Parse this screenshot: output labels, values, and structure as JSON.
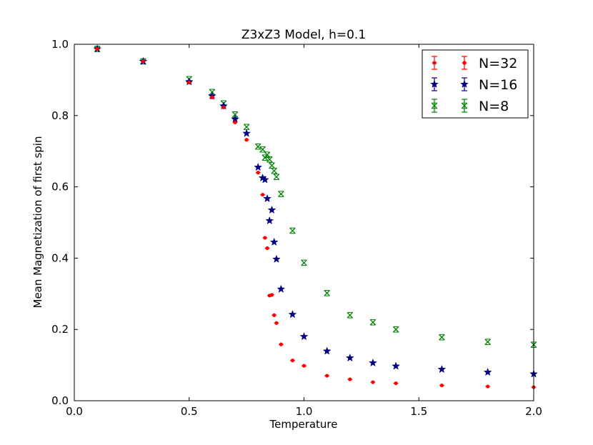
{
  "chart_data": {
    "type": "scatter",
    "title": "Z3xZ3 Model, h=0.1",
    "xlabel": "Temperature",
    "ylabel": "Mean Magnetization of first spin",
    "xlim": [
      0.0,
      2.0
    ],
    "ylim": [
      0.0,
      1.0
    ],
    "xticks": [
      "0.0",
      "0.5",
      "1.0",
      "1.5",
      "2.0"
    ],
    "yticks": [
      "0.0",
      "0.2",
      "0.4",
      "0.6",
      "0.8",
      "1.0"
    ],
    "grid": false,
    "legend_position": "top-right",
    "error_bars": true,
    "series": [
      {
        "name": "N=32",
        "color": "#ff0000",
        "marker": "dot",
        "x": [
          0.1,
          0.3,
          0.5,
          0.6,
          0.65,
          0.7,
          0.75,
          0.8,
          0.82,
          0.83,
          0.84,
          0.85,
          0.86,
          0.87,
          0.88,
          0.9,
          0.95,
          1.0,
          1.1,
          1.2,
          1.3,
          1.4,
          1.6,
          1.8,
          2.0
        ],
        "y": [
          0.987,
          0.952,
          0.893,
          0.851,
          0.823,
          0.781,
          0.732,
          0.64,
          0.578,
          0.457,
          0.428,
          0.295,
          0.297,
          0.24,
          0.218,
          0.158,
          0.113,
          0.098,
          0.07,
          0.06,
          0.052,
          0.049,
          0.043,
          0.04,
          0.038
        ]
      },
      {
        "name": "N=16",
        "color": "#000080",
        "marker": "star",
        "x": [
          0.1,
          0.3,
          0.5,
          0.6,
          0.65,
          0.7,
          0.75,
          0.8,
          0.82,
          0.83,
          0.84,
          0.85,
          0.86,
          0.87,
          0.88,
          0.9,
          0.95,
          1.0,
          1.1,
          1.2,
          1.3,
          1.4,
          1.6,
          1.8,
          2.0
        ],
        "y": [
          0.987,
          0.952,
          0.895,
          0.855,
          0.827,
          0.79,
          0.75,
          0.655,
          0.625,
          0.62,
          0.567,
          0.505,
          0.535,
          0.445,
          0.397,
          0.313,
          0.242,
          0.18,
          0.139,
          0.12,
          0.106,
          0.097,
          0.088,
          0.08,
          0.075
        ]
      },
      {
        "name": "N=8",
        "color": "#008000",
        "marker": "x",
        "x": [
          0.1,
          0.3,
          0.5,
          0.6,
          0.65,
          0.7,
          0.75,
          0.8,
          0.82,
          0.83,
          0.84,
          0.85,
          0.86,
          0.87,
          0.88,
          0.9,
          0.95,
          1.0,
          1.1,
          1.2,
          1.3,
          1.4,
          1.6,
          1.8,
          2.0
        ],
        "y": [
          0.987,
          0.952,
          0.902,
          0.866,
          0.834,
          0.803,
          0.768,
          0.713,
          0.705,
          0.682,
          0.69,
          0.677,
          0.66,
          0.645,
          0.628,
          0.58,
          0.477,
          0.387,
          0.302,
          0.24,
          0.22,
          0.2,
          0.178,
          0.165,
          0.157
        ]
      }
    ]
  }
}
